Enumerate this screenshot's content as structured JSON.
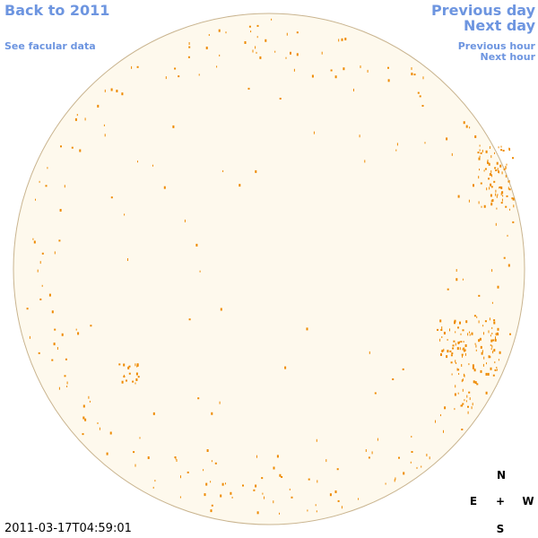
{
  "nav": {
    "back": "Back to 2011",
    "previous_day": "Previous day",
    "next_day": "Next day",
    "facular": "See facular data",
    "previous_hour": "Previous hour",
    "next_hour": "Next hour"
  },
  "timestamp": "2011-03-17T04:59:01",
  "compass": {
    "north": "N",
    "east": "E",
    "center": "+",
    "west": "W",
    "south": "S"
  }
}
